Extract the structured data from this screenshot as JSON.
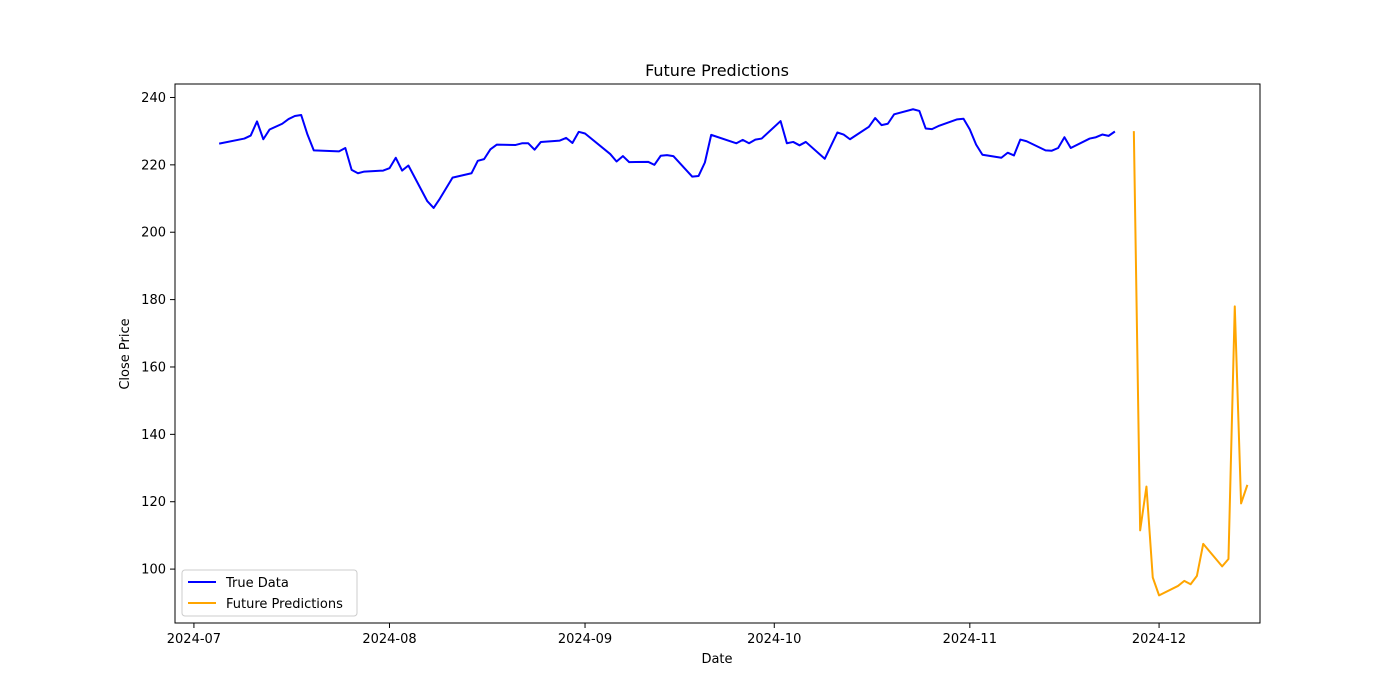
{
  "chart_data": {
    "type": "line",
    "title": "Future Predictions",
    "xlabel": "Date",
    "ylabel": "Close Price",
    "xlim": [
      "2024-06-28",
      "2024-12-17"
    ],
    "ylim": [
      84,
      244
    ],
    "x_ticks": [
      "2024-07-01",
      "2024-08-01",
      "2024-09-01",
      "2024-10-01",
      "2024-11-01",
      "2024-12-01"
    ],
    "x_tick_labels": [
      "2024-07",
      "2024-08",
      "2024-09",
      "2024-10",
      "2024-11",
      "2024-12"
    ],
    "y_ticks": [
      100,
      120,
      140,
      160,
      180,
      200,
      220,
      240
    ],
    "y_tick_labels": [
      "100",
      "120",
      "140",
      "160",
      "180",
      "200",
      "220",
      "240"
    ],
    "grid": false,
    "legend_position": "lower-left",
    "series": [
      {
        "name": "True Data",
        "color": "#0000ff",
        "points": [
          [
            "2024-07-05",
            226.3
          ],
          [
            "2024-07-09",
            227.8
          ],
          [
            "2024-07-10",
            228.7
          ],
          [
            "2024-07-11",
            232.9
          ],
          [
            "2024-07-12",
            227.6
          ],
          [
            "2024-07-13",
            230.5
          ],
          [
            "2024-07-15",
            232.2
          ],
          [
            "2024-07-16",
            233.6
          ],
          [
            "2024-07-17",
            234.5
          ],
          [
            "2024-07-18",
            234.8
          ],
          [
            "2024-07-19",
            229.0
          ],
          [
            "2024-07-20",
            224.3
          ],
          [
            "2024-07-24",
            224.0
          ],
          [
            "2024-07-25",
            225.0
          ],
          [
            "2024-07-26",
            218.5
          ],
          [
            "2024-07-27",
            217.5
          ],
          [
            "2024-07-28",
            218.0
          ],
          [
            "2024-07-31",
            218.3
          ],
          [
            "2024-08-01",
            219.0
          ],
          [
            "2024-08-02",
            222.1
          ],
          [
            "2024-08-03",
            218.3
          ],
          [
            "2024-08-04",
            219.8
          ],
          [
            "2024-08-07",
            209.2
          ],
          [
            "2024-08-08",
            207.2
          ],
          [
            "2024-08-09",
            210.0
          ],
          [
            "2024-08-11",
            216.2
          ],
          [
            "2024-08-14",
            217.5
          ],
          [
            "2024-08-15",
            221.2
          ],
          [
            "2024-08-16",
            221.7
          ],
          [
            "2024-08-17",
            224.6
          ],
          [
            "2024-08-18",
            226.0
          ],
          [
            "2024-08-21",
            225.9
          ],
          [
            "2024-08-22",
            226.4
          ],
          [
            "2024-08-23",
            226.4
          ],
          [
            "2024-08-24",
            224.5
          ],
          [
            "2024-08-25",
            226.8
          ],
          [
            "2024-08-28",
            227.2
          ],
          [
            "2024-08-29",
            228.0
          ],
          [
            "2024-08-30",
            226.5
          ],
          [
            "2024-08-31",
            229.8
          ],
          [
            "2024-09-01",
            229.3
          ],
          [
            "2024-09-05",
            223.2
          ],
          [
            "2024-09-06",
            221.0
          ],
          [
            "2024-09-07",
            222.6
          ],
          [
            "2024-09-08",
            220.8
          ],
          [
            "2024-09-11",
            220.9
          ],
          [
            "2024-09-12",
            220.0
          ],
          [
            "2024-09-13",
            222.7
          ],
          [
            "2024-09-14",
            222.9
          ],
          [
            "2024-09-15",
            222.6
          ],
          [
            "2024-09-18",
            216.5
          ],
          [
            "2024-09-19",
            216.7
          ],
          [
            "2024-09-20",
            220.7
          ],
          [
            "2024-09-21",
            228.9
          ],
          [
            "2024-09-25",
            226.4
          ],
          [
            "2024-09-26",
            227.4
          ],
          [
            "2024-09-27",
            226.4
          ],
          [
            "2024-09-28",
            227.5
          ],
          [
            "2024-09-29",
            227.8
          ],
          [
            "2024-10-02",
            233.0
          ],
          [
            "2024-10-03",
            226.4
          ],
          [
            "2024-10-04",
            226.8
          ],
          [
            "2024-10-05",
            225.8
          ],
          [
            "2024-10-06",
            226.8
          ],
          [
            "2024-10-09",
            221.8
          ],
          [
            "2024-10-11",
            229.6
          ],
          [
            "2024-10-12",
            229.0
          ],
          [
            "2024-10-13",
            227.6
          ],
          [
            "2024-10-16",
            231.3
          ],
          [
            "2024-10-17",
            233.9
          ],
          [
            "2024-10-18",
            231.8
          ],
          [
            "2024-10-19",
            232.2
          ],
          [
            "2024-10-20",
            235.0
          ],
          [
            "2024-10-23",
            236.5
          ],
          [
            "2024-10-24",
            236.0
          ],
          [
            "2024-10-25",
            230.8
          ],
          [
            "2024-10-26",
            230.6
          ],
          [
            "2024-10-27",
            231.5
          ],
          [
            "2024-10-30",
            233.5
          ],
          [
            "2024-10-31",
            233.7
          ],
          [
            "2024-11-01",
            230.5
          ],
          [
            "2024-11-02",
            226.0
          ],
          [
            "2024-11-03",
            223.0
          ],
          [
            "2024-11-06",
            222.1
          ],
          [
            "2024-11-07",
            223.6
          ],
          [
            "2024-11-08",
            222.8
          ],
          [
            "2024-11-09",
            227.5
          ],
          [
            "2024-11-10",
            227.0
          ],
          [
            "2024-11-13",
            224.3
          ],
          [
            "2024-11-14",
            224.2
          ],
          [
            "2024-11-15",
            225.0
          ],
          [
            "2024-11-16",
            228.2
          ],
          [
            "2024-11-17",
            225.0
          ],
          [
            "2024-11-20",
            227.8
          ],
          [
            "2024-11-21",
            228.2
          ],
          [
            "2024-11-22",
            229.0
          ],
          [
            "2024-11-23",
            228.6
          ],
          [
            "2024-11-24",
            229.9
          ]
        ]
      },
      {
        "name": "Future Predictions",
        "color": "#ffa500",
        "points": [
          [
            "2024-11-27",
            230.0
          ],
          [
            "2024-11-28",
            111.5
          ],
          [
            "2024-11-29",
            124.5
          ],
          [
            "2024-11-30",
            97.5
          ],
          [
            "2024-12-01",
            92.2
          ],
          [
            "2024-12-04",
            95.0
          ],
          [
            "2024-12-05",
            96.5
          ],
          [
            "2024-12-06",
            95.5
          ],
          [
            "2024-12-07",
            98.0
          ],
          [
            "2024-12-08",
            107.5
          ],
          [
            "2024-12-11",
            100.8
          ],
          [
            "2024-12-12",
            103.0
          ],
          [
            "2024-12-13",
            178.0
          ],
          [
            "2024-12-14",
            119.5
          ],
          [
            "2024-12-15",
            125.0
          ]
        ]
      }
    ]
  }
}
